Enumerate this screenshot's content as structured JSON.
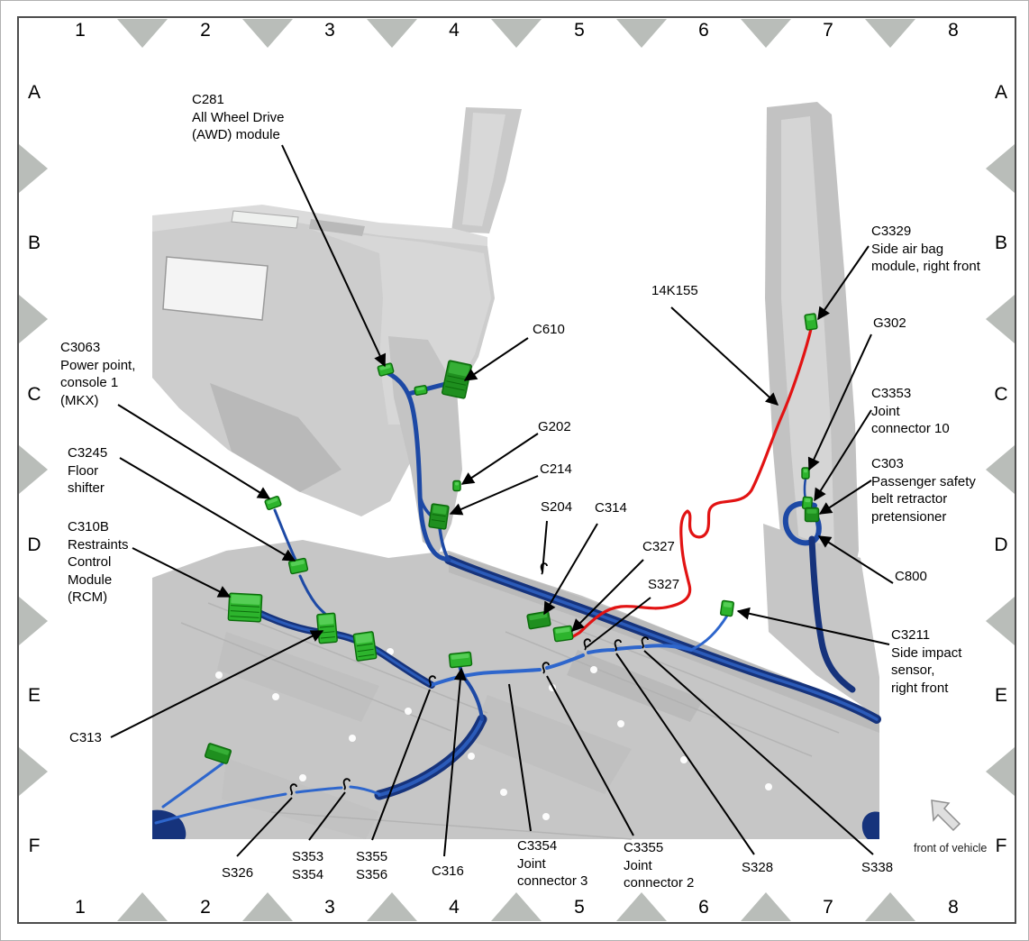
{
  "grid": {
    "columns": [
      "1",
      "2",
      "3",
      "4",
      "5",
      "6",
      "7",
      "8"
    ],
    "rows": [
      "A",
      "B",
      "C",
      "D",
      "E",
      "F"
    ]
  },
  "callouts": {
    "c281": {
      "lines": [
        "C281",
        "All Wheel Drive",
        "(AWD) module"
      ]
    },
    "c610": {
      "lines": [
        "C610"
      ]
    },
    "g202": {
      "lines": [
        "G202"
      ]
    },
    "c214": {
      "lines": [
        "C214"
      ]
    },
    "s204": {
      "lines": [
        "S204"
      ]
    },
    "c314": {
      "lines": [
        "C314"
      ]
    },
    "c327": {
      "lines": [
        "C327"
      ]
    },
    "s327": {
      "lines": [
        "S327"
      ]
    },
    "harness_14k155": {
      "lines": [
        "14K155"
      ]
    },
    "c3329": {
      "lines": [
        "C3329",
        "Side air bag",
        "module, right front"
      ]
    },
    "g302": {
      "lines": [
        "G302"
      ]
    },
    "c3353": {
      "lines": [
        "C3353",
        "Joint",
        "connector 10"
      ]
    },
    "c303": {
      "lines": [
        "C303",
        "Passenger safety",
        "belt retractor",
        "pretensioner"
      ]
    },
    "c800": {
      "lines": [
        "C800"
      ]
    },
    "c3211": {
      "lines": [
        "C3211",
        "Side impact",
        "sensor,",
        "right front"
      ]
    },
    "c3063": {
      "lines": [
        "C3063",
        "Power point,",
        "console 1",
        "(MKX)"
      ]
    },
    "c3245": {
      "lines": [
        "C3245",
        "Floor",
        "shifter"
      ]
    },
    "c310b": {
      "lines": [
        "C310B",
        "Restraints",
        "Control",
        "Module",
        "(RCM)"
      ]
    },
    "c313": {
      "lines": [
        "C313"
      ]
    },
    "s326": {
      "lines": [
        "S326"
      ]
    },
    "s353_s354": {
      "lines": [
        "S353",
        "S354"
      ]
    },
    "s355_s356": {
      "lines": [
        "S355",
        "S356"
      ]
    },
    "c316": {
      "lines": [
        "C316"
      ]
    },
    "c3354": {
      "lines": [
        "C3354",
        "Joint",
        "connector 3"
      ]
    },
    "c3355": {
      "lines": [
        "C3355",
        "Joint",
        "connector 2"
      ]
    },
    "s328": {
      "lines": [
        "S328"
      ]
    },
    "s338": {
      "lines": [
        "S338"
      ]
    },
    "front_of_vehicle": {
      "lines": [
        "front of vehicle"
      ]
    }
  },
  "colors": {
    "harness_dark": "#16337c",
    "harness_mid": "#1d49a5",
    "harness_highlight": "#2f63c4",
    "wire_light_blue": "#2e66cc",
    "wire_red": "#e21313",
    "connector_green": "#2db42d",
    "connector_green_dark": "#1f8f1f",
    "connector_edge": "#0b6b0b",
    "marker_gray": "#b9bdb9",
    "body_gray": "#c6c6c6",
    "frame_gray": "#4d4d4d"
  }
}
